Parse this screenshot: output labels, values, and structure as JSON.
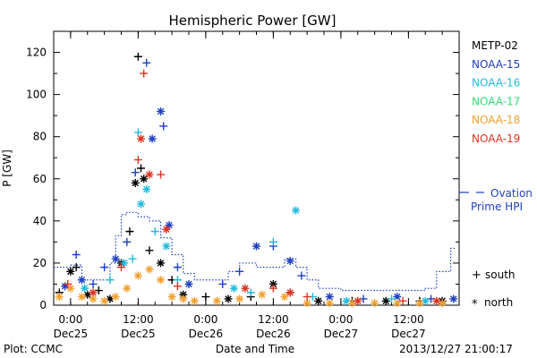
{
  "chart_data": {
    "type": "scatter",
    "title": "Hemispheric Power [GW]",
    "ylabel": "P [GW]",
    "xlabel": "Date and Time",
    "ylim": [
      0,
      130
    ],
    "yticks": [
      0,
      20,
      40,
      60,
      80,
      100,
      120
    ],
    "xlim": [
      "2013-12-24T21:00",
      "2013-12-27T21:00"
    ],
    "xticks": [
      {
        "t": "2013-12-25T00:00",
        "top": "0:00",
        "bottom": "Dec25"
      },
      {
        "t": "2013-12-25T12:00",
        "top": "12:00",
        "bottom": "Dec25"
      },
      {
        "t": "2013-12-26T00:00",
        "top": "0:00",
        "bottom": "Dec26"
      },
      {
        "t": "2013-12-26T12:00",
        "top": "12:00",
        "bottom": "Dec26"
      },
      {
        "t": "2013-12-27T00:00",
        "top": "0:00",
        "bottom": "Dec27"
      },
      {
        "t": "2013-12-27T12:00",
        "top": "12:00",
        "bottom": "Dec27"
      }
    ],
    "series": [
      {
        "name": "METP-02",
        "color": "#000000",
        "points": [
          {
            "t": "2013-12-24T22:00",
            "y": 6,
            "m": "+"
          },
          {
            "t": "2013-12-25T00:00",
            "y": 16,
            "m": "*"
          },
          {
            "t": "2013-12-25T01:00",
            "y": 18,
            "m": "+"
          },
          {
            "t": "2013-12-25T03:00",
            "y": 5,
            "m": "*"
          },
          {
            "t": "2013-12-25T05:00",
            "y": 7,
            "m": "+"
          },
          {
            "t": "2013-12-25T07:00",
            "y": 3,
            "m": "*"
          },
          {
            "t": "2013-12-25T09:00",
            "y": 20,
            "m": "*"
          },
          {
            "t": "2013-12-25T10:30",
            "y": 35,
            "m": "+"
          },
          {
            "t": "2013-12-25T11:30",
            "y": 58,
            "m": "*"
          },
          {
            "t": "2013-12-25T12:00",
            "y": 118,
            "m": "+"
          },
          {
            "t": "2013-12-25T12:30",
            "y": 65,
            "m": "+"
          },
          {
            "t": "2013-12-25T13:00",
            "y": 60,
            "m": "*"
          },
          {
            "t": "2013-12-25T14:00",
            "y": 26,
            "m": "+"
          },
          {
            "t": "2013-12-25T16:00",
            "y": 20,
            "m": "*"
          },
          {
            "t": "2013-12-25T18:00",
            "y": 12,
            "m": "+"
          },
          {
            "t": "2013-12-25T20:00",
            "y": 5,
            "m": "*"
          },
          {
            "t": "2013-12-26T00:00",
            "y": 4,
            "m": "+"
          },
          {
            "t": "2013-12-26T04:00",
            "y": 3,
            "m": "*"
          },
          {
            "t": "2013-12-26T08:00",
            "y": 4,
            "m": "+"
          },
          {
            "t": "2013-12-26T12:00",
            "y": 10,
            "m": "*"
          },
          {
            "t": "2013-12-26T15:00",
            "y": 6,
            "m": "+"
          },
          {
            "t": "2013-12-26T20:00",
            "y": 2,
            "m": "*"
          },
          {
            "t": "2013-12-27T02:00",
            "y": 2,
            "m": "+"
          },
          {
            "t": "2013-12-27T08:00",
            "y": 2,
            "m": "*"
          },
          {
            "t": "2013-12-27T14:00",
            "y": 2,
            "m": "+"
          },
          {
            "t": "2013-12-27T18:00",
            "y": 2,
            "m": "*"
          }
        ]
      },
      {
        "name": "NOAA-15",
        "color": "#1f3fbf",
        "points": [
          {
            "t": "2013-12-24T23:00",
            "y": 9,
            "m": "*"
          },
          {
            "t": "2013-12-25T01:00",
            "y": 24,
            "m": "+"
          },
          {
            "t": "2013-12-25T02:00",
            "y": 12,
            "m": "*"
          },
          {
            "t": "2013-12-25T04:00",
            "y": 10,
            "m": "+"
          },
          {
            "t": "2013-12-25T06:00",
            "y": 18,
            "m": "+"
          },
          {
            "t": "2013-12-25T08:00",
            "y": 22,
            "m": "*"
          },
          {
            "t": "2013-12-25T10:00",
            "y": 30,
            "m": "+"
          },
          {
            "t": "2013-12-25T11:30",
            "y": 63,
            "m": "+"
          },
          {
            "t": "2013-12-25T13:30",
            "y": 115,
            "m": "+"
          },
          {
            "t": "2013-12-25T14:30",
            "y": 79,
            "m": "*"
          },
          {
            "t": "2013-12-25T16:00",
            "y": 92,
            "m": "*"
          },
          {
            "t": "2013-12-25T16:30",
            "y": 85,
            "m": "+"
          },
          {
            "t": "2013-12-25T17:30",
            "y": 38,
            "m": "*"
          },
          {
            "t": "2013-12-25T19:00",
            "y": 18,
            "m": "+"
          },
          {
            "t": "2013-12-25T21:00",
            "y": 10,
            "m": "*"
          },
          {
            "t": "2013-12-26T03:00",
            "y": 10,
            "m": "+"
          },
          {
            "t": "2013-12-26T06:00",
            "y": 16,
            "m": "+"
          },
          {
            "t": "2013-12-26T09:00",
            "y": 28,
            "m": "*"
          },
          {
            "t": "2013-12-26T12:00",
            "y": 28,
            "m": "+"
          },
          {
            "t": "2013-12-26T15:00",
            "y": 21,
            "m": "*"
          },
          {
            "t": "2013-12-26T17:00",
            "y": 14,
            "m": "+"
          },
          {
            "t": "2013-12-26T22:00",
            "y": 4,
            "m": "*"
          },
          {
            "t": "2013-12-27T04:00",
            "y": 3,
            "m": "+"
          },
          {
            "t": "2013-12-27T10:00",
            "y": 4,
            "m": "*"
          },
          {
            "t": "2013-12-27T16:00",
            "y": 3,
            "m": "+"
          },
          {
            "t": "2013-12-27T20:00",
            "y": 3,
            "m": "*"
          }
        ]
      },
      {
        "name": "NOAA-16",
        "color": "#22bbdd",
        "points": [
          {
            "t": "2013-12-25T02:30",
            "y": 8,
            "m": "*"
          },
          {
            "t": "2013-12-25T07:00",
            "y": 12,
            "m": "+"
          },
          {
            "t": "2013-12-25T09:30",
            "y": 20,
            "m": "*"
          },
          {
            "t": "2013-12-25T11:00",
            "y": 22,
            "m": "+"
          },
          {
            "t": "2013-12-25T12:00",
            "y": 82,
            "m": "+"
          },
          {
            "t": "2013-12-25T12:30",
            "y": 48,
            "m": "*"
          },
          {
            "t": "2013-12-25T13:30",
            "y": 55,
            "m": "*"
          },
          {
            "t": "2013-12-25T15:00",
            "y": 35,
            "m": "+"
          },
          {
            "t": "2013-12-25T17:00",
            "y": 28,
            "m": "*"
          },
          {
            "t": "2013-12-25T19:00",
            "y": 12,
            "m": "+"
          },
          {
            "t": "2013-12-26T05:00",
            "y": 8,
            "m": "*"
          },
          {
            "t": "2013-12-26T08:00",
            "y": 6,
            "m": "+"
          },
          {
            "t": "2013-12-26T12:00",
            "y": 30,
            "m": "+"
          },
          {
            "t": "2013-12-26T16:00",
            "y": 45,
            "m": "*"
          },
          {
            "t": "2013-12-26T19:00",
            "y": 4,
            "m": "+"
          },
          {
            "t": "2013-12-27T01:00",
            "y": 2,
            "m": "*"
          },
          {
            "t": "2013-12-27T09:00",
            "y": 3,
            "m": "+"
          },
          {
            "t": "2013-12-27T15:00",
            "y": 2,
            "m": "*"
          }
        ]
      },
      {
        "name": "NOAA-17",
        "color": "#33dd77",
        "points": []
      },
      {
        "name": "NOAA-18",
        "color": "#f0a030",
        "points": [
          {
            "t": "2013-12-24T22:00",
            "y": 4,
            "m": "*"
          },
          {
            "t": "2013-12-25T00:00",
            "y": 8,
            "m": "*"
          },
          {
            "t": "2013-12-25T02:00",
            "y": 4,
            "m": "*"
          },
          {
            "t": "2013-12-25T04:00",
            "y": 3,
            "m": "*"
          },
          {
            "t": "2013-12-25T06:00",
            "y": 2,
            "m": "*"
          },
          {
            "t": "2013-12-25T08:00",
            "y": 4,
            "m": "*"
          },
          {
            "t": "2013-12-25T10:00",
            "y": 8,
            "m": "*"
          },
          {
            "t": "2013-12-25T12:00",
            "y": 14,
            "m": "*"
          },
          {
            "t": "2013-12-25T14:00",
            "y": 17,
            "m": "*"
          },
          {
            "t": "2013-12-25T16:00",
            "y": 12,
            "m": "*"
          },
          {
            "t": "2013-12-25T18:00",
            "y": 4,
            "m": "*"
          },
          {
            "t": "2013-12-25T20:00",
            "y": 3,
            "m": "*"
          },
          {
            "t": "2013-12-25T22:00",
            "y": 2,
            "m": "*"
          },
          {
            "t": "2013-12-26T02:00",
            "y": 2,
            "m": "*"
          },
          {
            "t": "2013-12-26T06:00",
            "y": 3,
            "m": "*"
          },
          {
            "t": "2013-12-26T10:00",
            "y": 5,
            "m": "*"
          },
          {
            "t": "2013-12-26T14:00",
            "y": 4,
            "m": "*"
          },
          {
            "t": "2013-12-26T18:00",
            "y": 1,
            "m": "*"
          },
          {
            "t": "2013-12-26T22:00",
            "y": 1,
            "m": "*"
          },
          {
            "t": "2013-12-27T02:00",
            "y": 1,
            "m": "*"
          },
          {
            "t": "2013-12-27T06:00",
            "y": 1,
            "m": "*"
          },
          {
            "t": "2013-12-27T10:00",
            "y": 1,
            "m": "*"
          },
          {
            "t": "2013-12-27T14:00",
            "y": 1,
            "m": "*"
          },
          {
            "t": "2013-12-27T18:00",
            "y": 1,
            "m": "*"
          }
        ]
      },
      {
        "name": "NOAA-19",
        "color": "#dd3322",
        "points": [
          {
            "t": "2013-12-24T23:30",
            "y": 10,
            "m": "+"
          },
          {
            "t": "2013-12-25T04:00",
            "y": 6,
            "m": "*"
          },
          {
            "t": "2013-12-25T09:00",
            "y": 18,
            "m": "+"
          },
          {
            "t": "2013-12-25T12:00",
            "y": 69,
            "m": "+"
          },
          {
            "t": "2013-12-25T12:30",
            "y": 79,
            "m": "*"
          },
          {
            "t": "2013-12-25T13:00",
            "y": 110,
            "m": "+"
          },
          {
            "t": "2013-12-25T14:00",
            "y": 62,
            "m": "*"
          },
          {
            "t": "2013-12-25T16:00",
            "y": 62,
            "m": "+"
          },
          {
            "t": "2013-12-25T17:00",
            "y": 36,
            "m": "*"
          },
          {
            "t": "2013-12-25T19:00",
            "y": 9,
            "m": "+"
          },
          {
            "t": "2013-12-26T07:00",
            "y": 8,
            "m": "*"
          },
          {
            "t": "2013-12-26T12:00",
            "y": 8,
            "m": "+"
          },
          {
            "t": "2013-12-26T15:00",
            "y": 6,
            "m": "*"
          },
          {
            "t": "2013-12-26T18:00",
            "y": 4,
            "m": "+"
          },
          {
            "t": "2013-12-27T03:00",
            "y": 2,
            "m": "*"
          },
          {
            "t": "2013-12-27T11:00",
            "y": 2,
            "m": "+"
          },
          {
            "t": "2013-12-27T17:00",
            "y": 2,
            "m": "*"
          }
        ]
      },
      {
        "name": "Ovation Prime HPI",
        "color": "#1f3fbf",
        "style": "line",
        "points": [
          {
            "t": "2013-12-24T21:00",
            "y": 18
          },
          {
            "t": "2013-12-25T00:00",
            "y": 19
          },
          {
            "t": "2013-12-25T02:00",
            "y": 12
          },
          {
            "t": "2013-12-25T05:00",
            "y": 12
          },
          {
            "t": "2013-12-25T07:00",
            "y": 20
          },
          {
            "t": "2013-12-25T08:00",
            "y": 33
          },
          {
            "t": "2013-12-25T09:00",
            "y": 43
          },
          {
            "t": "2013-12-25T10:00",
            "y": 44
          },
          {
            "t": "2013-12-25T12:00",
            "y": 42
          },
          {
            "t": "2013-12-25T14:00",
            "y": 40
          },
          {
            "t": "2013-12-25T16:00",
            "y": 32
          },
          {
            "t": "2013-12-25T18:00",
            "y": 24
          },
          {
            "t": "2013-12-25T20:00",
            "y": 15
          },
          {
            "t": "2013-12-25T22:00",
            "y": 12
          },
          {
            "t": "2013-12-26T02:00",
            "y": 12
          },
          {
            "t": "2013-12-26T04:00",
            "y": 16
          },
          {
            "t": "2013-12-26T06:00",
            "y": 20
          },
          {
            "t": "2013-12-26T09:00",
            "y": 18
          },
          {
            "t": "2013-12-26T12:00",
            "y": 18
          },
          {
            "t": "2013-12-26T14:00",
            "y": 22
          },
          {
            "t": "2013-12-26T16:00",
            "y": 18
          },
          {
            "t": "2013-12-26T18:00",
            "y": 12
          },
          {
            "t": "2013-12-26T20:00",
            "y": 8
          },
          {
            "t": "2013-12-27T00:00",
            "y": 7
          },
          {
            "t": "2013-12-27T06:00",
            "y": 7
          },
          {
            "t": "2013-12-27T12:00",
            "y": 7
          },
          {
            "t": "2013-12-27T15:00",
            "y": 8
          },
          {
            "t": "2013-12-27T17:00",
            "y": 16
          },
          {
            "t": "2013-12-27T18:30",
            "y": 16
          },
          {
            "t": "2013-12-27T19:30",
            "y": 27
          },
          {
            "t": "2013-12-27T20:30",
            "y": 27
          }
        ]
      }
    ],
    "legend": {
      "placement": "right",
      "entries": [
        "METP-02",
        "NOAA-15",
        "NOAA-16",
        "NOAA-17",
        "NOAA-18",
        "NOAA-19"
      ],
      "ovation_line1": "Ovation",
      "ovation_line2": "Prime HPI",
      "south_label": "south",
      "north_label": "north",
      "south_symbol": "+",
      "north_symbol": "*"
    }
  },
  "footer": {
    "plot_credit": "Plot: CCMC",
    "timestamp": "2013/12/27 21:00:17"
  }
}
